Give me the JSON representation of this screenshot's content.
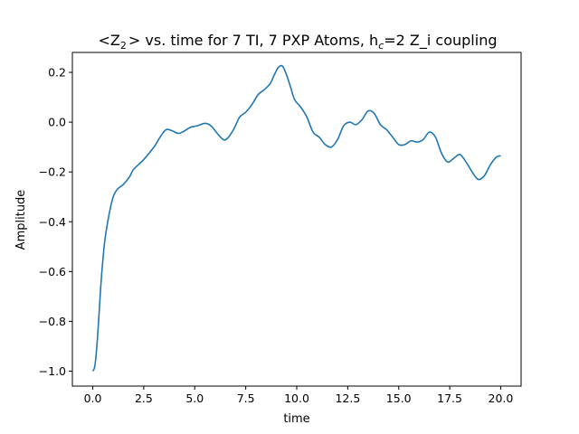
{
  "chart_data": {
    "type": "line",
    "title": {
      "prefix": "<Z",
      "prefix_sub": "2",
      "middle": "> vs. time for 7 TI, 7 PXP Atoms, h",
      "middle_sub": "c",
      "suffix": "=2 Z_i coupling"
    },
    "xlabel": "time",
    "ylabel": "Amplitude",
    "xlim": [
      -1.0,
      21.0
    ],
    "ylim": [
      -1.06,
      0.28
    ],
    "x_ticks": [
      0.0,
      2.5,
      5.0,
      7.5,
      10.0,
      12.5,
      15.0,
      17.5,
      20.0
    ],
    "x_tick_labels": [
      "0.0",
      "2.5",
      "5.0",
      "7.5",
      "10.0",
      "12.5",
      "15.0",
      "17.5",
      "20.0"
    ],
    "y_ticks": [
      -1.0,
      -0.8,
      -0.6,
      -0.4,
      -0.2,
      0.0,
      0.2
    ],
    "y_tick_labels": [
      "−1.0",
      "−0.8",
      "−0.6",
      "−0.4",
      "−0.2",
      "0.0",
      "0.2"
    ],
    "grid": false,
    "series": [
      {
        "color": "#1f77b4",
        "x": [
          0.0,
          0.1,
          0.2,
          0.3,
          0.4,
          0.5,
          0.6,
          0.8,
          1.0,
          1.2,
          1.5,
          1.8,
          2.0,
          2.5,
          3.0,
          3.3,
          3.6,
          3.9,
          4.2,
          4.5,
          4.8,
          5.1,
          5.5,
          5.8,
          6.1,
          6.4,
          6.6,
          6.9,
          7.2,
          7.5,
          7.8,
          8.1,
          8.4,
          8.7,
          8.9,
          9.1,
          9.3,
          9.5,
          9.7,
          9.9,
          10.2,
          10.5,
          10.8,
          11.1,
          11.4,
          11.7,
          12.0,
          12.3,
          12.6,
          12.9,
          13.2,
          13.5,
          13.8,
          14.1,
          14.4,
          14.7,
          15.0,
          15.3,
          15.6,
          15.9,
          16.2,
          16.5,
          16.8,
          17.1,
          17.4,
          17.7,
          18.0,
          18.3,
          18.6,
          18.9,
          19.2,
          19.5,
          19.8,
          20.0
        ],
        "y": [
          -1.0,
          -0.98,
          -0.9,
          -0.78,
          -0.65,
          -0.55,
          -0.47,
          -0.37,
          -0.3,
          -0.27,
          -0.25,
          -0.22,
          -0.19,
          -0.15,
          -0.1,
          -0.06,
          -0.03,
          -0.035,
          -0.045,
          -0.035,
          -0.02,
          -0.015,
          -0.005,
          -0.015,
          -0.045,
          -0.07,
          -0.065,
          -0.03,
          0.02,
          0.04,
          0.07,
          0.11,
          0.13,
          0.155,
          0.19,
          0.22,
          0.225,
          0.19,
          0.14,
          0.09,
          0.06,
          0.02,
          -0.04,
          -0.06,
          -0.09,
          -0.1,
          -0.07,
          -0.015,
          0.0,
          -0.01,
          0.01,
          0.045,
          0.035,
          -0.01,
          -0.03,
          -0.06,
          -0.09,
          -0.09,
          -0.075,
          -0.08,
          -0.07,
          -0.04,
          -0.06,
          -0.125,
          -0.16,
          -0.145,
          -0.13,
          -0.16,
          -0.2,
          -0.23,
          -0.215,
          -0.17,
          -0.14,
          -0.135
        ]
      }
    ]
  }
}
